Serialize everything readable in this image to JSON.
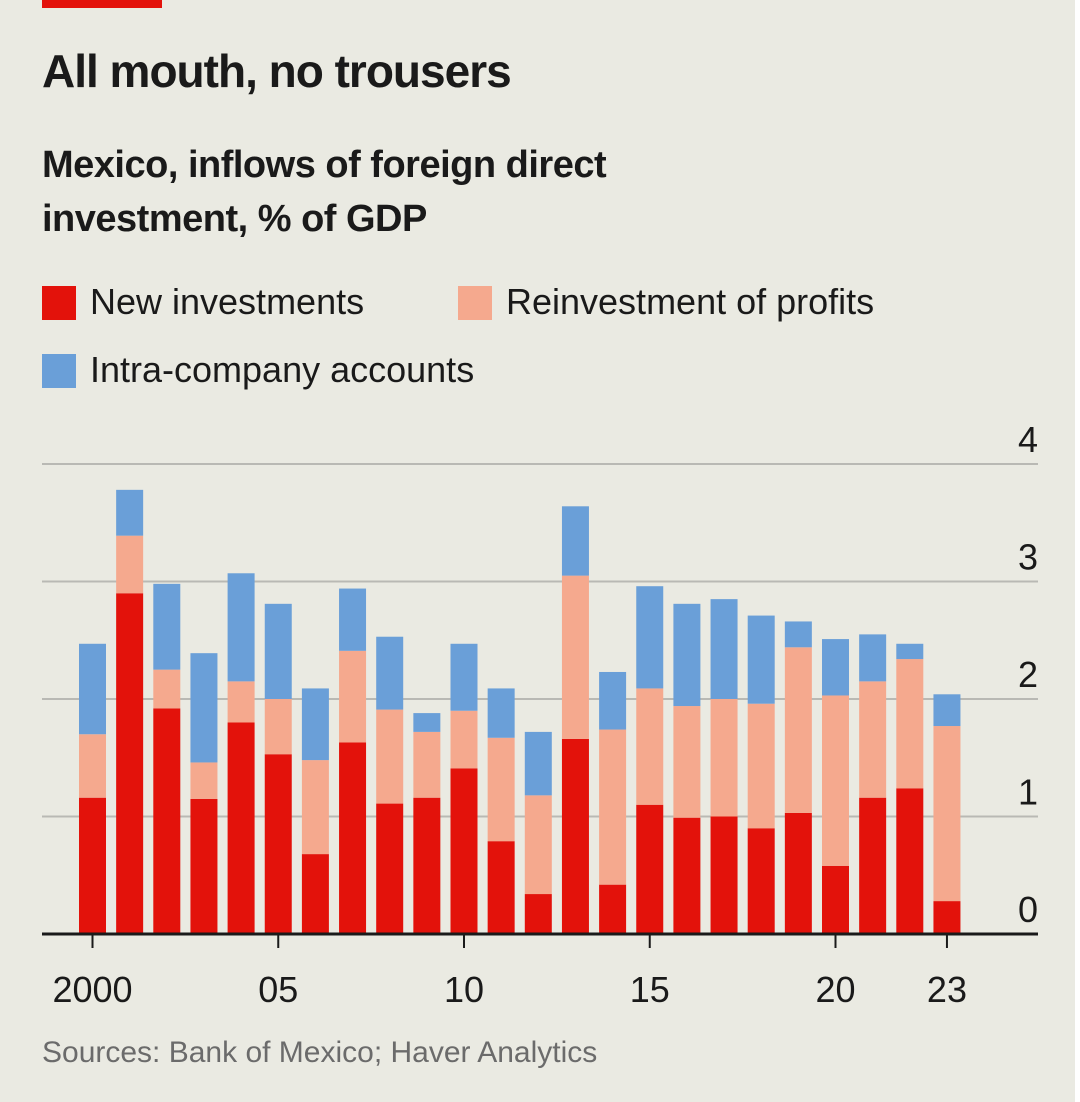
{
  "header": {
    "title": "All mouth, no trousers",
    "subtitle": "Mexico, inflows of foreign direct investment, % of GDP"
  },
  "footer": {
    "source": "Sources: Bank of Mexico; Haver Analytics"
  },
  "colors": {
    "new_investments": "#e3120b",
    "reinvestment": "#f5a98e",
    "intra_company": "#6a9fd8",
    "accent": "#e3120b",
    "background": "#eaeae2",
    "grid": "#b9b9b4"
  },
  "chart_data": {
    "type": "bar",
    "stacked": true,
    "title": "All mouth, no trousers",
    "subtitle": "Mexico, inflows of foreign direct investment, % of GDP",
    "x": [
      2000,
      2001,
      2002,
      2003,
      2004,
      2005,
      2006,
      2007,
      2008,
      2009,
      2010,
      2011,
      2012,
      2013,
      2014,
      2015,
      2016,
      2017,
      2018,
      2019,
      2020,
      2021,
      2022,
      2023
    ],
    "x_tick_labels": [
      {
        "year": 2000,
        "label": "2000"
      },
      {
        "year": 2005,
        "label": "05"
      },
      {
        "year": 2010,
        "label": "10"
      },
      {
        "year": 2015,
        "label": "15"
      },
      {
        "year": 2020,
        "label": "20"
      },
      {
        "year": 2023,
        "label": "23"
      }
    ],
    "ylim": [
      0,
      4
    ],
    "yticks": [
      "0",
      "1",
      "2",
      "3",
      "4"
    ],
    "y_axis_position": "right",
    "grid": true,
    "legend_position": "top-left",
    "series": [
      {
        "name": "New investments",
        "values": [
          1.16,
          2.9,
          1.92,
          1.15,
          1.8,
          1.53,
          0.68,
          1.63,
          1.11,
          1.16,
          1.41,
          0.79,
          0.34,
          1.66,
          0.42,
          1.1,
          0.99,
          1.0,
          0.9,
          1.03,
          0.58,
          1.16,
          1.24,
          0.28
        ]
      },
      {
        "name": "Reinvestment of profits",
        "values": [
          0.54,
          0.49,
          0.33,
          0.31,
          0.35,
          0.47,
          0.8,
          0.78,
          0.8,
          0.56,
          0.49,
          0.88,
          0.84,
          1.39,
          1.32,
          0.99,
          0.95,
          1.0,
          1.06,
          1.41,
          1.45,
          0.99,
          1.1,
          1.49
        ]
      },
      {
        "name": "Intra-company accounts",
        "values": [
          0.77,
          0.39,
          0.73,
          0.93,
          0.92,
          0.81,
          0.61,
          0.53,
          0.62,
          0.16,
          0.57,
          0.42,
          0.54,
          0.59,
          0.49,
          0.87,
          0.87,
          0.85,
          0.75,
          0.22,
          0.48,
          0.4,
          0.13,
          0.27
        ]
      }
    ]
  }
}
